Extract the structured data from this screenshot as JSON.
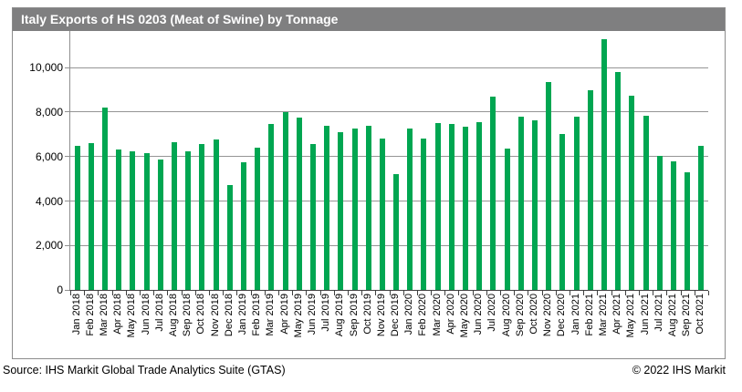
{
  "header": {
    "title": "Italy Exports of HS 0203 (Meat of Swine) by Tonnage"
  },
  "chart_data": {
    "type": "bar",
    "title": "Italy Exports of HS 0203 (Meat of Swine) by Tonnage",
    "categories": [
      "Jan 2018",
      "Feb 2018",
      "Mar 2018",
      "Apr 2018",
      "May 2018",
      "Jun 2018",
      "Jul 2018",
      "Aug 2018",
      "Sep 2018",
      "Oct 2018",
      "Nov 2018",
      "Dec 2018",
      "Jan 2019",
      "Feb 2019",
      "Mar 2019",
      "Apr 2019",
      "May 2019",
      "Jun 2019",
      "Jul 2019",
      "Aug 2019",
      "Sep 2019",
      "Oct 2019",
      "Nov 2019",
      "Dec 2019",
      "Jan 2020",
      "Feb 2020",
      "Mar 2020",
      "Apr 2020",
      "May 2020",
      "Jun 2020",
      "Jul 2020",
      "Aug 2020",
      "Sep 2020",
      "Oct 2020",
      "Nov 2020",
      "Dec 2020",
      "Jan 2021",
      "Feb 2021",
      "Mar 2021",
      "Apr 2021",
      "May 2021",
      "Jun 2021",
      "Jul 2021",
      "Aug 2021",
      "Sep 2021",
      "Oct 2021"
    ],
    "values": [
      6500,
      6600,
      8200,
      6300,
      6250,
      6150,
      5850,
      6650,
      6250,
      6550,
      6750,
      4700,
      5750,
      6400,
      7450,
      8000,
      7750,
      6550,
      7400,
      7100,
      7250,
      7400,
      6800,
      5200,
      7250,
      6800,
      7500,
      7450,
      7350,
      7550,
      8700,
      6350,
      7800,
      7650,
      9350,
      7000,
      7800,
      9000,
      11300,
      9800,
      8750,
      7850,
      6050,
      5800,
      5300,
      6500
    ],
    "xlabel": "",
    "ylabel": "",
    "ylim": [
      0,
      11650
    ],
    "grid": true,
    "legend": false,
    "y_ticks": [
      {
        "value": 0,
        "label": "0"
      },
      {
        "value": 2000,
        "label": "2,000"
      },
      {
        "value": 4000,
        "label": "4,000"
      },
      {
        "value": 6000,
        "label": "6,000"
      },
      {
        "value": 8000,
        "label": "8,000"
      },
      {
        "value": 10000,
        "label": "10,000"
      }
    ]
  },
  "colors": {
    "bar": "#00a651",
    "header_bg": "#7f7f80",
    "gridline": "#959595",
    "frame_border": "#8c8c8c"
  },
  "footer": {
    "source": "Source: IHS Markit Global Trade Analytics Suite (GTAS)",
    "copyright": "© 2022 IHS Markit"
  }
}
